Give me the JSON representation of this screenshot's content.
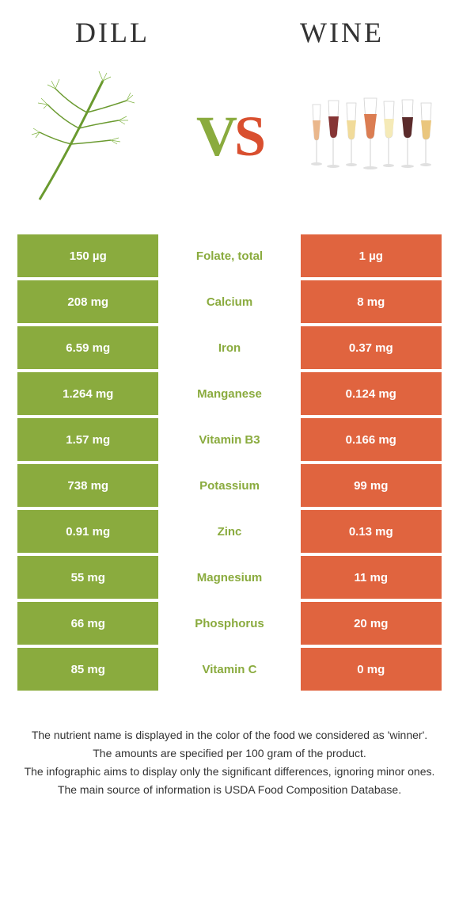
{
  "header": {
    "left_title": "Dill",
    "right_title": "Wine"
  },
  "vs": {
    "v": "V",
    "s": "S"
  },
  "colors": {
    "dill": "#8aab3e",
    "wine": "#e0643f",
    "mid_bg": "#ffffff",
    "mid_text_dill": "#8aab3e",
    "mid_text_wine": "#e0643f",
    "cell_text": "#ffffff"
  },
  "rows": [
    {
      "left": "150 µg",
      "mid": "Folate, total",
      "right": "1 µg",
      "winner": "dill"
    },
    {
      "left": "208 mg",
      "mid": "Calcium",
      "right": "8 mg",
      "winner": "dill"
    },
    {
      "left": "6.59 mg",
      "mid": "Iron",
      "right": "0.37 mg",
      "winner": "dill"
    },
    {
      "left": "1.264 mg",
      "mid": "Manganese",
      "right": "0.124 mg",
      "winner": "dill"
    },
    {
      "left": "1.57 mg",
      "mid": "Vitamin B3",
      "right": "0.166 mg",
      "winner": "dill"
    },
    {
      "left": "738 mg",
      "mid": "Potassium",
      "right": "99 mg",
      "winner": "dill"
    },
    {
      "left": "0.91 mg",
      "mid": "Zinc",
      "right": "0.13 mg",
      "winner": "dill"
    },
    {
      "left": "55 mg",
      "mid": "Magnesium",
      "right": "11 mg",
      "winner": "dill"
    },
    {
      "left": "66 mg",
      "mid": "Phosphorus",
      "right": "20 mg",
      "winner": "dill"
    },
    {
      "left": "85 mg",
      "mid": "Vitamin C",
      "right": "0 mg",
      "winner": "dill"
    }
  ],
  "footnotes": [
    "The nutrient name is displayed in the color of the food we considered as 'winner'.",
    "The amounts are specified per 100 gram of the product.",
    "The infographic aims to display only the significant differences, ignoring minor ones.",
    "The main source of information is USDA Food Composition Database."
  ]
}
